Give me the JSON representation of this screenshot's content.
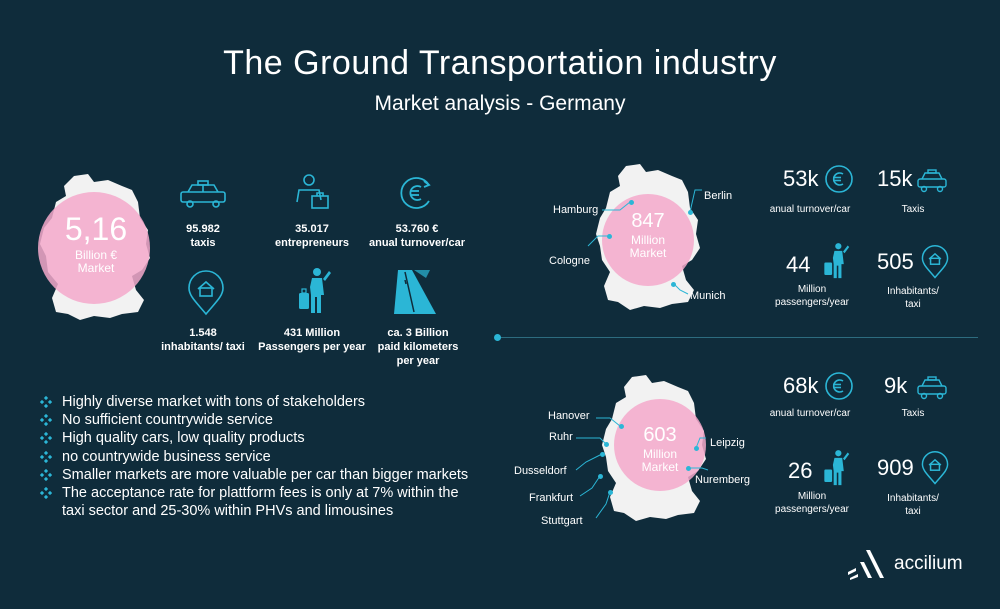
{
  "header": {
    "title": "The Ground Transportation industry",
    "subtitle": "Market analysis - Germany"
  },
  "germany": {
    "bubble_value": "5,16",
    "bubble_unit_line1": "Billion €",
    "bubble_unit_line2": "Market",
    "stats": [
      {
        "value": "95.982",
        "label": "taxis",
        "icon": "taxi-icon"
      },
      {
        "value": "35.017",
        "label": "entrepreneurs",
        "icon": "entrepreneur-icon"
      },
      {
        "value": "53.760 €",
        "label": "anual turnover/car",
        "icon": "euro-icon"
      },
      {
        "value": "1.548",
        "label": "inhabitants/ taxi",
        "icon": "home-pin-icon"
      },
      {
        "value": "431 Million",
        "label": "Passengers per year",
        "icon": "passenger-icon"
      },
      {
        "value": "ca. 3 Billion",
        "label": "paid kilometers",
        "label2": "per year",
        "icon": "road-icon"
      }
    ]
  },
  "bullets": [
    "Highly diverse market with tons of stakeholders",
    "No sufficient countrywide service",
    "High quality cars, low quality products",
    "no countrywide business service",
    "Smaller markets are more valuable per car than bigger markets",
    "The acceptance rate for plattform fees is only at 7% within the taxi sector and 25-30% within PHVs and limousines"
  ],
  "region1": {
    "bubble_value": "847",
    "bubble_unit_line1": "Million",
    "bubble_unit_line2": "Market",
    "cities": [
      "Hamburg",
      "Berlin",
      "Cologne",
      "Munich"
    ],
    "turnover_value": "53k",
    "turnover_label": "anual turnover/car",
    "taxis_value": "15k",
    "taxis_label": "Taxis",
    "passengers_value": "44",
    "passengers_label1": "Million",
    "passengers_label2": "passengers/year",
    "inhabitants_value": "505",
    "inhabitants_label1": "Inhabitants/",
    "inhabitants_label2": "taxi"
  },
  "region2": {
    "bubble_value": "603",
    "bubble_unit_line1": "Million",
    "bubble_unit_line2": "Market",
    "cities": [
      "Hanover",
      "Ruhr",
      "Leipzig",
      "Dusseldorf",
      "Nuremberg",
      "Frankfurt",
      "Stuttgart"
    ],
    "turnover_value": "68k",
    "turnover_label": "anual turnover/car",
    "taxis_value": "9k",
    "taxis_label": "Taxis",
    "passengers_value": "26",
    "passengers_label1": "Million",
    "passengers_label2": "passengers/year",
    "inhabitants_value": "909",
    "inhabitants_label1": "Inhabitants/",
    "inhabitants_label2": "taxi"
  },
  "logo": {
    "text": "accilium"
  },
  "colors": {
    "background": "#0f2c3b",
    "accent": "#2bb6d6",
    "bubble": "#f5a9cb",
    "map": "#f2f2f2"
  }
}
